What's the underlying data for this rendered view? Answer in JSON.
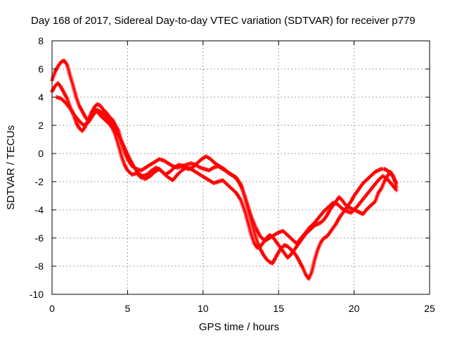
{
  "chart_data": {
    "type": "scatter",
    "title": "Day 168 of 2017, Sidereal Day-to-day VTEC variation (SDTVAR) for receiver p779",
    "xlabel": "GPS time / hours",
    "ylabel": "SDTVAR / TECUs",
    "xlim": [
      0,
      25
    ],
    "ylim": [
      -10,
      8
    ],
    "xticks": [
      0,
      5,
      10,
      15,
      20,
      25
    ],
    "yticks": [
      -10,
      -8,
      -6,
      -4,
      -2,
      0,
      2,
      4,
      6,
      8
    ],
    "grid": true,
    "legend": "none",
    "marker": "+",
    "color": "#ff0000",
    "series": [
      {
        "x": [
          0.0,
          0.2,
          0.4,
          0.6,
          0.8,
          1.0,
          1.2,
          1.4,
          1.6,
          1.8,
          2.0,
          2.2,
          2.4,
          2.6,
          2.8,
          3.0,
          3.2,
          3.4,
          3.6,
          3.8,
          4.0,
          4.2,
          4.4,
          4.6,
          4.8,
          5.0,
          5.3,
          5.6,
          5.9,
          6.2,
          6.5,
          6.8,
          7.1,
          7.4,
          7.7,
          8.0,
          8.3,
          8.6,
          8.9,
          9.2,
          9.5,
          9.8,
          10.1,
          10.4,
          10.7,
          11.0,
          11.3,
          11.6,
          11.9,
          12.2,
          12.5,
          12.8,
          13.0,
          13.2,
          13.4,
          13.6,
          13.8,
          14.0,
          14.2,
          14.4,
          14.6,
          14.8,
          15.0,
          15.2,
          15.4,
          15.6,
          15.8,
          16.0,
          16.2,
          16.4,
          16.6,
          16.8,
          17.0,
          17.2,
          17.4,
          17.6,
          17.8,
          18.0,
          18.2,
          18.4,
          18.6,
          18.8,
          19.0,
          19.2,
          19.4,
          19.6,
          19.8,
          20.0,
          20.2,
          20.4,
          20.6,
          20.8,
          21.0,
          21.2,
          21.4,
          21.6,
          21.8,
          22.0,
          22.2,
          22.4,
          22.6,
          22.8
        ],
        "y": [
          5.2,
          5.8,
          6.2,
          6.5,
          6.6,
          6.3,
          5.5,
          4.8,
          4.0,
          3.4,
          3.0,
          2.6,
          2.3,
          2.8,
          3.3,
          3.5,
          3.4,
          3.1,
          2.9,
          2.6,
          2.4,
          2.0,
          1.6,
          0.8,
          0.1,
          -0.4,
          -0.9,
          -1.1,
          -1.2,
          -1.0,
          -0.8,
          -0.6,
          -0.4,
          -0.5,
          -0.7,
          -0.9,
          -1.0,
          -0.9,
          -0.8,
          -0.7,
          -0.8,
          -1.0,
          -1.1,
          -1.2,
          -1.0,
          -0.9,
          -1.1,
          -1.3,
          -1.5,
          -1.7,
          -2.2,
          -3.2,
          -4.0,
          -4.8,
          -5.6,
          -6.3,
          -6.8,
          -7.2,
          -7.5,
          -7.7,
          -7.8,
          -7.4,
          -7.0,
          -6.7,
          -6.5,
          -6.6,
          -6.8,
          -7.0,
          -7.3,
          -7.7,
          -8.1,
          -8.6,
          -8.9,
          -8.4,
          -7.5,
          -6.8,
          -6.3,
          -6.0,
          -5.9,
          -5.6,
          -5.3,
          -5.0,
          -4.6,
          -4.3,
          -4.0,
          -3.7,
          -3.4,
          -3.0,
          -2.7,
          -2.4,
          -2.1,
          -1.9,
          -1.7,
          -1.5,
          -1.3,
          -1.2,
          -1.1,
          -1.1,
          -1.2,
          -1.4,
          -1.7,
          -2.1
        ]
      },
      {
        "x": [
          0.0,
          0.2,
          0.4,
          0.6,
          0.8,
          1.0,
          1.2,
          1.4,
          1.6,
          1.8,
          2.0,
          2.2,
          2.4,
          2.6,
          2.8,
          3.0,
          3.2,
          3.4,
          3.6,
          3.8,
          4.0,
          4.2,
          4.4,
          4.6,
          4.8,
          5.0,
          5.3,
          5.6,
          5.9,
          6.2,
          6.5,
          6.8,
          7.1,
          7.4,
          7.7,
          8.0,
          8.3,
          8.6,
          8.9,
          9.2,
          9.5,
          9.8,
          10.1,
          10.4,
          10.7,
          11.0,
          11.3,
          11.6,
          11.9,
          12.2,
          12.5,
          12.8,
          13.0,
          13.2,
          13.4,
          13.6,
          13.8,
          14.0,
          14.2,
          14.4,
          14.6,
          14.8,
          15.0,
          15.2,
          15.4,
          15.6,
          15.8,
          16.0,
          16.2,
          16.4,
          16.6,
          16.8,
          17.0,
          17.2,
          17.4,
          17.6,
          17.8,
          18.0,
          18.2,
          18.4,
          18.6,
          18.8,
          19.0,
          19.2,
          19.4,
          19.6,
          19.8,
          20.0,
          20.2,
          20.4,
          20.6,
          20.8,
          21.0,
          21.2,
          21.4,
          21.6,
          21.8,
          22.0,
          22.2,
          22.4,
          22.6,
          22.8
        ],
        "y": [
          4.4,
          4.8,
          5.0,
          4.7,
          4.3,
          3.9,
          3.3,
          2.8,
          2.2,
          1.8,
          1.6,
          1.9,
          2.4,
          2.9,
          3.2,
          3.0,
          2.7,
          2.5,
          2.3,
          2.1,
          1.8,
          1.3,
          0.6,
          -0.2,
          -0.8,
          -1.2,
          -1.5,
          -1.4,
          -1.7,
          -1.8,
          -1.6,
          -1.3,
          -1.1,
          -1.4,
          -1.7,
          -1.9,
          -1.5,
          -1.2,
          -1.0,
          -1.1,
          -1.3,
          -1.5,
          -1.7,
          -1.9,
          -2.1,
          -2.0,
          -1.9,
          -2.2,
          -2.5,
          -2.8,
          -3.3,
          -4.2,
          -5.0,
          -5.8,
          -6.4,
          -6.7,
          -6.6,
          -6.3,
          -6.0,
          -5.8,
          -5.9,
          -6.2,
          -6.5,
          -6.8,
          -7.1,
          -7.4,
          -7.2,
          -6.9,
          -6.6,
          -6.3,
          -6.0,
          -5.7,
          -5.5,
          -5.3,
          -5.1,
          -5.0,
          -4.9,
          -4.7,
          -4.4,
          -4.0,
          -3.7,
          -3.4,
          -3.1,
          -3.3,
          -3.6,
          -3.8,
          -3.9,
          -4.0,
          -4.1,
          -4.2,
          -4.3,
          -4.0,
          -3.8,
          -3.6,
          -3.4,
          -2.8,
          -2.5,
          -2.0,
          -1.6,
          -1.3,
          -1.6,
          -2.4
        ]
      },
      {
        "x": [
          0.3,
          0.6,
          0.9,
          1.2,
          1.5,
          1.8,
          2.1,
          2.4,
          2.7,
          3.0,
          3.3,
          3.6,
          3.9,
          4.2,
          4.5,
          4.8,
          5.1,
          5.4,
          5.7,
          6.0,
          6.3,
          6.6,
          6.9,
          7.2,
          7.5,
          7.8,
          8.1,
          8.4,
          8.7,
          9.0,
          9.3,
          9.6,
          9.9,
          10.2,
          10.5,
          10.8,
          11.1,
          11.4,
          11.7,
          12.0,
          12.3,
          12.6,
          12.9,
          13.2,
          13.5,
          13.8,
          14.1,
          14.4,
          14.7,
          15.0,
          15.3,
          15.6,
          15.9,
          16.2,
          16.5,
          16.8,
          17.1,
          17.4,
          17.7,
          18.0,
          18.3,
          18.6,
          18.9,
          19.2,
          19.5,
          19.8,
          20.1,
          20.4,
          20.7,
          21.0,
          21.3,
          21.6,
          21.9,
          22.2,
          22.5,
          22.8
        ],
        "y": [
          4.0,
          3.9,
          3.6,
          3.2,
          2.7,
          2.3,
          2.0,
          2.2,
          2.7,
          3.1,
          2.9,
          2.6,
          2.2,
          1.7,
          1.1,
          0.4,
          -0.3,
          -0.9,
          -1.4,
          -1.6,
          -1.5,
          -1.2,
          -1.0,
          -1.2,
          -1.5,
          -1.3,
          -1.0,
          -0.8,
          -0.9,
          -1.1,
          -1.0,
          -0.7,
          -0.4,
          -0.2,
          -0.4,
          -0.7,
          -0.9,
          -1.1,
          -1.4,
          -1.6,
          -1.9,
          -2.5,
          -3.5,
          -4.5,
          -5.3,
          -5.9,
          -6.2,
          -6.0,
          -5.8,
          -5.6,
          -5.5,
          -5.8,
          -6.1,
          -6.4,
          -6.0,
          -5.6,
          -5.2,
          -4.9,
          -4.5,
          -4.1,
          -3.8,
          -3.5,
          -3.6,
          -3.9,
          -4.1,
          -4.2,
          -3.9,
          -3.5,
          -3.1,
          -2.7,
          -2.3,
          -1.9,
          -1.6,
          -1.8,
          -2.2,
          -2.6
        ]
      }
    ]
  }
}
